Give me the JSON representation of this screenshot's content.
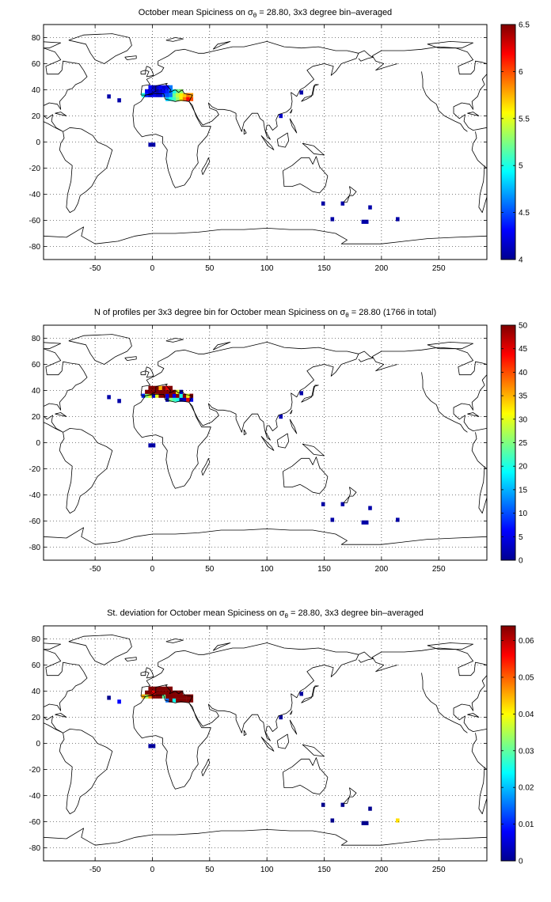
{
  "chart_data": [
    {
      "type": "heatmap",
      "title": {
        "prefix": "October mean Spiciness on ",
        "sigma": "σ",
        "sub": "θ",
        "suffix": " = 28.80, 3x3 degree bin–averaged"
      },
      "xlim": [
        -95,
        292
      ],
      "ylim": [
        -90,
        90
      ],
      "xticks": [
        -50,
        0,
        50,
        100,
        150,
        200,
        250
      ],
      "yticks": [
        -80,
        -60,
        -40,
        -20,
        0,
        20,
        40,
        60,
        80
      ],
      "grid": true,
      "colormap": "jet",
      "clim": [
        4,
        6.5
      ],
      "cticks": [
        4,
        4.5,
        5,
        5.5,
        6,
        6.5
      ],
      "cells": [
        [
          -8,
          36,
          5.0
        ],
        [
          -5,
          36,
          4.4
        ],
        [
          -5,
          39,
          4.3
        ],
        [
          -2,
          36,
          4.2
        ],
        [
          -2,
          39,
          4.2
        ],
        [
          -2,
          42,
          4.3
        ],
        [
          1,
          36,
          4.3
        ],
        [
          1,
          39,
          4.2
        ],
        [
          1,
          42,
          4.1
        ],
        [
          4,
          36,
          4.2
        ],
        [
          4,
          39,
          4.1
        ],
        [
          4,
          42,
          4.2
        ],
        [
          7,
          36,
          4.2
        ],
        [
          7,
          39,
          4.2
        ],
        [
          7,
          42,
          4.3
        ],
        [
          10,
          36,
          4.5
        ],
        [
          10,
          39,
          4.3
        ],
        [
          10,
          42,
          4.2
        ],
        [
          13,
          33,
          4.8
        ],
        [
          13,
          36,
          4.5
        ],
        [
          13,
          39,
          4.4
        ],
        [
          13,
          42,
          4.3
        ],
        [
          16,
          33,
          5.0
        ],
        [
          16,
          36,
          4.6
        ],
        [
          16,
          39,
          4.6
        ],
        [
          16,
          42,
          4.6
        ],
        [
          19,
          33,
          5.1
        ],
        [
          19,
          36,
          5.2
        ],
        [
          19,
          39,
          5.0
        ],
        [
          22,
          33,
          5.3
        ],
        [
          22,
          36,
          5.4
        ],
        [
          22,
          39,
          5.2
        ],
        [
          25,
          33,
          5.6
        ],
        [
          25,
          36,
          5.6
        ],
        [
          25,
          39,
          5.3
        ],
        [
          28,
          33,
          5.9
        ],
        [
          28,
          36,
          5.7
        ],
        [
          31,
          33,
          6.2
        ],
        [
          31,
          36,
          5.9
        ],
        [
          34,
          33,
          6.0
        ],
        [
          34,
          36,
          5.8
        ],
        [
          -38,
          35,
          4.1
        ],
        [
          -29,
          32,
          4.1
        ],
        [
          -2,
          -2,
          4.1
        ],
        [
          1,
          -2,
          4.1
        ],
        [
          112,
          20,
          4.2
        ],
        [
          130,
          38,
          4.1
        ],
        [
          149,
          -47,
          4.1
        ],
        [
          157,
          -59,
          4.1
        ],
        [
          166,
          -47,
          4.1
        ],
        [
          184,
          -61,
          4.1
        ],
        [
          187,
          -61,
          4.1
        ],
        [
          190,
          -50,
          4.1
        ],
        [
          214,
          -59,
          4.1
        ]
      ]
    },
    {
      "type": "heatmap",
      "title": {
        "prefix": "N of profiles per 3x3 degree bin for October mean Spiciness on ",
        "sigma": "σ",
        "sub": "θ",
        "suffix": " = 28.80 (1766 in total)"
      },
      "xlim": [
        -95,
        292
      ],
      "ylim": [
        -90,
        90
      ],
      "xticks": [
        -50,
        0,
        50,
        100,
        150,
        200,
        250
      ],
      "yticks": [
        -80,
        -60,
        -40,
        -20,
        0,
        20,
        40,
        60,
        80
      ],
      "grid": true,
      "colormap": "jet",
      "clim": [
        0,
        50
      ],
      "cticks": [
        0,
        5,
        10,
        15,
        20,
        25,
        30,
        35,
        40,
        45,
        50
      ],
      "cells": [
        [
          -8,
          36,
          8
        ],
        [
          -5,
          36,
          25
        ],
        [
          -5,
          39,
          50
        ],
        [
          -2,
          36,
          30
        ],
        [
          -2,
          39,
          50
        ],
        [
          -2,
          42,
          50
        ],
        [
          1,
          36,
          3
        ],
        [
          1,
          39,
          50
        ],
        [
          1,
          42,
          50
        ],
        [
          4,
          36,
          30
        ],
        [
          4,
          39,
          50
        ],
        [
          4,
          42,
          50
        ],
        [
          7,
          36,
          50
        ],
        [
          7,
          39,
          50
        ],
        [
          7,
          42,
          35
        ],
        [
          10,
          36,
          50
        ],
        [
          10,
          39,
          50
        ],
        [
          10,
          42,
          50
        ],
        [
          13,
          33,
          2
        ],
        [
          13,
          36,
          5
        ],
        [
          13,
          39,
          50
        ],
        [
          13,
          42,
          45
        ],
        [
          16,
          33,
          25
        ],
        [
          16,
          36,
          50
        ],
        [
          16,
          39,
          50
        ],
        [
          16,
          42,
          50
        ],
        [
          19,
          33,
          22
        ],
        [
          19,
          36,
          5
        ],
        [
          19,
          39,
          50
        ],
        [
          22,
          33,
          20
        ],
        [
          22,
          36,
          50
        ],
        [
          22,
          39,
          30
        ],
        [
          25,
          33,
          2
        ],
        [
          25,
          36,
          20
        ],
        [
          25,
          39,
          3
        ],
        [
          28,
          33,
          3
        ],
        [
          28,
          36,
          50
        ],
        [
          31,
          33,
          45
        ],
        [
          31,
          36,
          30
        ],
        [
          34,
          33,
          5
        ],
        [
          34,
          36,
          50
        ],
        [
          -38,
          35,
          2
        ],
        [
          -29,
          32,
          2
        ],
        [
          -2,
          -2,
          2
        ],
        [
          1,
          -2,
          2
        ],
        [
          112,
          20,
          3
        ],
        [
          130,
          38,
          2
        ],
        [
          149,
          -47,
          2
        ],
        [
          157,
          -59,
          2
        ],
        [
          166,
          -47,
          2
        ],
        [
          184,
          -61,
          2
        ],
        [
          187,
          -61,
          2
        ],
        [
          190,
          -50,
          2
        ],
        [
          214,
          -59,
          2
        ]
      ]
    },
    {
      "type": "heatmap",
      "title": {
        "prefix": "St. deviation for October mean Spiciness on ",
        "sigma": "σ",
        "sub": "θ",
        "suffix": " = 28.80, 3x3 degree bin–averaged"
      },
      "xlim": [
        -95,
        292
      ],
      "ylim": [
        -90,
        90
      ],
      "xticks": [
        -50,
        0,
        50,
        100,
        150,
        200,
        250
      ],
      "yticks": [
        -80,
        -60,
        -40,
        -20,
        0,
        20,
        40,
        60,
        80
      ],
      "grid": true,
      "colormap": "jet",
      "clim": [
        0,
        0.064
      ],
      "cticks": [
        0,
        0.01,
        0.02,
        0.03,
        0.04,
        0.05,
        0.06
      ],
      "cells": [
        [
          -8,
          36,
          0.045
        ],
        [
          -5,
          36,
          0.035
        ],
        [
          -5,
          39,
          0.064
        ],
        [
          -2,
          36,
          0.048
        ],
        [
          -2,
          39,
          0.064
        ],
        [
          -2,
          42,
          0.064
        ],
        [
          1,
          36,
          0.064
        ],
        [
          1,
          39,
          0.058
        ],
        [
          1,
          42,
          0.064
        ],
        [
          4,
          36,
          0.064
        ],
        [
          4,
          39,
          0.064
        ],
        [
          4,
          42,
          0.064
        ],
        [
          7,
          36,
          0.064
        ],
        [
          7,
          39,
          0.064
        ],
        [
          7,
          42,
          0.064
        ],
        [
          10,
          36,
          0.03
        ],
        [
          10,
          39,
          0.064
        ],
        [
          10,
          42,
          0.064
        ],
        [
          13,
          33,
          0.015
        ],
        [
          13,
          36,
          0.064
        ],
        [
          13,
          39,
          0.064
        ],
        [
          13,
          42,
          0.064
        ],
        [
          16,
          33,
          0.064
        ],
        [
          16,
          36,
          0.064
        ],
        [
          16,
          39,
          0.064
        ],
        [
          16,
          42,
          0.064
        ],
        [
          19,
          33,
          0.025
        ],
        [
          19,
          36,
          0.064
        ],
        [
          19,
          39,
          0.064
        ],
        [
          22,
          33,
          0.064
        ],
        [
          22,
          36,
          0.064
        ],
        [
          22,
          39,
          0.064
        ],
        [
          25,
          33,
          0.064
        ],
        [
          25,
          36,
          0.064
        ],
        [
          25,
          39,
          0.064
        ],
        [
          28,
          33,
          0.064
        ],
        [
          28,
          36,
          0.064
        ],
        [
          31,
          33,
          0.064
        ],
        [
          31,
          36,
          0.064
        ],
        [
          34,
          33,
          0.064
        ],
        [
          34,
          36,
          0.064
        ],
        [
          -38,
          35,
          0.001
        ],
        [
          -29,
          32,
          0.008
        ],
        [
          -2,
          -2,
          0.002
        ],
        [
          1,
          -2,
          0.002
        ],
        [
          112,
          20,
          0.002
        ],
        [
          130,
          38,
          0.002
        ],
        [
          149,
          -47,
          0.001
        ],
        [
          157,
          -59,
          0.001
        ],
        [
          166,
          -47,
          0.001
        ],
        [
          184,
          -61,
          0.001
        ],
        [
          187,
          -61,
          0.001
        ],
        [
          190,
          -50,
          0.001
        ],
        [
          214,
          -59,
          0.042
        ]
      ]
    }
  ]
}
